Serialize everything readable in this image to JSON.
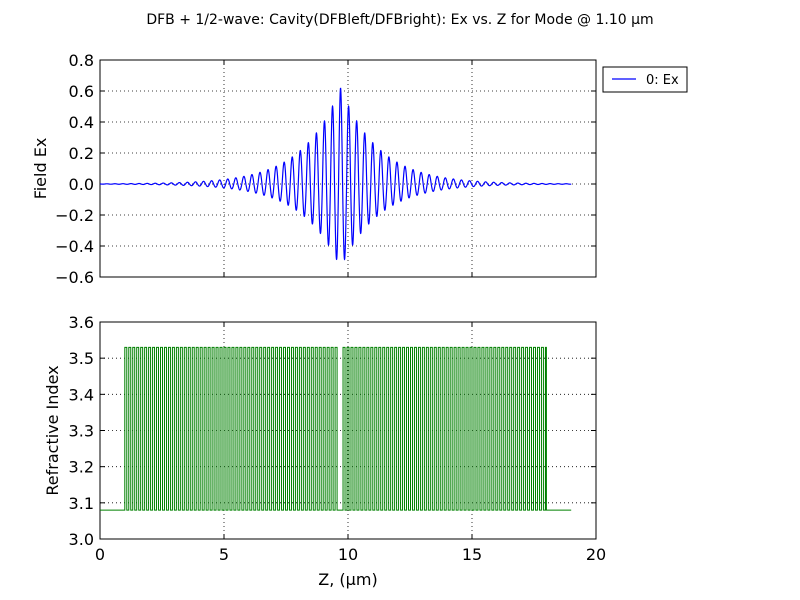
{
  "figure_title": "DFB + 1/2-wave: Cavity(DFBleft/DFBright): Ex vs. Z for Mode @ 1.10 μm",
  "colors": {
    "field": "#0000ff",
    "index": "#008000"
  },
  "chart_data": [
    {
      "type": "line",
      "name": "field",
      "ylabel": "Field Ex",
      "xlim": [
        0,
        20
      ],
      "ylim": [
        -0.6,
        0.8
      ],
      "xticks": [
        0,
        5,
        10,
        15,
        20
      ],
      "yticks": [
        -0.6,
        -0.4,
        -0.2,
        0.0,
        0.2,
        0.4,
        0.6,
        0.8
      ],
      "ytick_labels": [
        "−0.6",
        "−0.4",
        "−0.2",
        "0.0",
        "0.2",
        "0.4",
        "0.6",
        "0.8"
      ],
      "grid": true,
      "legend": {
        "position": "outside-right",
        "entries": [
          "0: Ex"
        ]
      },
      "series": [
        {
          "name": "0: Ex",
          "model": "standing-wave mode",
          "z_range": [
            0,
            19
          ],
          "center_z": 9.7,
          "period_um": 0.325,
          "peak_positive": 0.62,
          "peak_negative": -0.54,
          "envelope_decay_per_um": 0.65
        }
      ]
    },
    {
      "type": "line",
      "name": "index",
      "xlabel": "Z, (μm)",
      "ylabel": "Refractive Index",
      "xlim": [
        0,
        20
      ],
      "ylim": [
        3.0,
        3.6
      ],
      "xticks": [
        0,
        5,
        10,
        15,
        20
      ],
      "yticks": [
        3.0,
        3.1,
        3.2,
        3.3,
        3.4,
        3.5,
        3.6
      ],
      "ytick_labels": [
        "3.0",
        "3.1",
        "3.2",
        "3.3",
        "3.4",
        "3.5",
        "3.6"
      ],
      "grid": true,
      "series": [
        {
          "name": "index",
          "n_low": 3.08,
          "n_high": 3.53,
          "z_range": [
            0,
            19
          ],
          "grating_left": [
            1.0,
            9.6
          ],
          "phase_shift_gap": [
            9.6,
            9.8
          ],
          "grating_right": [
            9.8,
            18.0
          ],
          "grating_period_um": 0.16
        }
      ]
    }
  ]
}
